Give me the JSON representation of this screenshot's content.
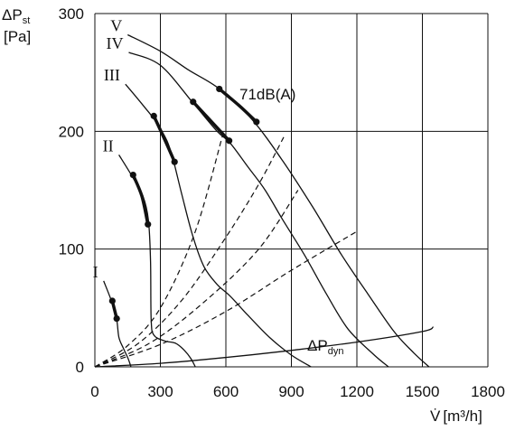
{
  "chart_data": {
    "type": "line",
    "y_axis": {
      "symbol": "ΔP",
      "subscript": "st",
      "unit": "[Pa]",
      "range": [
        0,
        300
      ],
      "ticks": [
        0,
        100,
        200,
        300
      ]
    },
    "x_axis": {
      "symbol": "V̇",
      "unit": "[m³/h]",
      "range": [
        0,
        1800
      ],
      "ticks": [
        0,
        300,
        600,
        900,
        1200,
        1500,
        1800
      ]
    },
    "grid": true,
    "series": [
      {
        "name": "I",
        "points": [
          [
            40,
            73
          ],
          [
            80,
            54
          ],
          [
            100,
            40
          ],
          [
            110,
            25
          ],
          [
            130,
            16
          ],
          [
            150,
            8
          ],
          [
            160,
            3
          ],
          [
            165,
            0
          ]
        ],
        "bold_segment": [
          [
            80,
            56
          ],
          [
            100,
            41
          ]
        ]
      },
      {
        "name": "II",
        "points": [
          [
            110,
            180
          ],
          [
            170,
            162
          ],
          [
            220,
            145
          ],
          [
            245,
            125
          ],
          [
            255,
            90
          ],
          [
            258,
            40
          ],
          [
            270,
            27
          ],
          [
            320,
            22
          ],
          [
            370,
            20
          ],
          [
            410,
            14
          ],
          [
            440,
            7
          ],
          [
            460,
            0
          ]
        ],
        "bold_segment": [
          [
            175,
            163
          ],
          [
            215,
            145
          ],
          [
            243,
            121
          ]
        ]
      },
      {
        "name": "III",
        "points": [
          [
            140,
            240
          ],
          [
            230,
            220
          ],
          [
            280,
            208
          ],
          [
            330,
            192
          ],
          [
            360,
            175
          ],
          [
            400,
            145
          ],
          [
            450,
            110
          ],
          [
            500,
            85
          ],
          [
            560,
            70
          ],
          [
            620,
            60
          ],
          [
            700,
            44
          ],
          [
            800,
            25
          ],
          [
            900,
            10
          ],
          [
            990,
            0
          ]
        ],
        "bold_segment": [
          [
            270,
            213
          ],
          [
            320,
            193
          ],
          [
            365,
            174
          ]
        ]
      },
      {
        "name": "IV",
        "points": [
          [
            155,
            267
          ],
          [
            300,
            256
          ],
          [
            450,
            224
          ],
          [
            560,
            200
          ],
          [
            620,
            190
          ],
          [
            700,
            170
          ],
          [
            780,
            150
          ],
          [
            860,
            125
          ],
          [
            960,
            95
          ],
          [
            1060,
            62
          ],
          [
            1160,
            32
          ],
          [
            1280,
            10
          ],
          [
            1345,
            0
          ]
        ],
        "bold_segment": [
          [
            450,
            225
          ],
          [
            540,
            207
          ],
          [
            615,
            192
          ]
        ]
      },
      {
        "name": "V",
        "points": [
          [
            150,
            282
          ],
          [
            300,
            268
          ],
          [
            430,
            252
          ],
          [
            570,
            236
          ],
          [
            720,
            210
          ],
          [
            860,
            175
          ],
          [
            1000,
            135
          ],
          [
            1130,
            95
          ],
          [
            1250,
            62
          ],
          [
            1370,
            30
          ],
          [
            1460,
            12
          ],
          [
            1530,
            0
          ]
        ],
        "bold_segment": [
          [
            570,
            236
          ],
          [
            660,
            222
          ],
          [
            740,
            208
          ]
        ]
      }
    ],
    "dashed_lines": [
      [
        [
          0,
          0
        ],
        [
          150,
          18
        ],
        [
          300,
          50
        ],
        [
          460,
          115
        ],
        [
          590,
          200
        ]
      ],
      [
        [
          0,
          0
        ],
        [
          200,
          20
        ],
        [
          400,
          57
        ],
        [
          600,
          110
        ],
        [
          750,
          155
        ],
        [
          865,
          195
        ]
      ],
      [
        [
          0,
          0
        ],
        [
          250,
          20
        ],
        [
          500,
          55
        ],
        [
          750,
          100
        ],
        [
          930,
          150
        ]
      ],
      [
        [
          0,
          0
        ],
        [
          300,
          19
        ],
        [
          600,
          47
        ],
        [
          900,
          82
        ],
        [
          1200,
          115
        ]
      ]
    ],
    "dynamic_pressure_line": [
      [
        0,
        0
      ],
      [
        300,
        3
      ],
      [
        600,
        8
      ],
      [
        900,
        14
      ],
      [
        1200,
        21
      ],
      [
        1500,
        30
      ],
      [
        1550,
        34
      ]
    ],
    "annotations": {
      "noise": "71dB(A)",
      "dyn_symbol": "ΔP",
      "dyn_subscript": "dyn"
    }
  }
}
